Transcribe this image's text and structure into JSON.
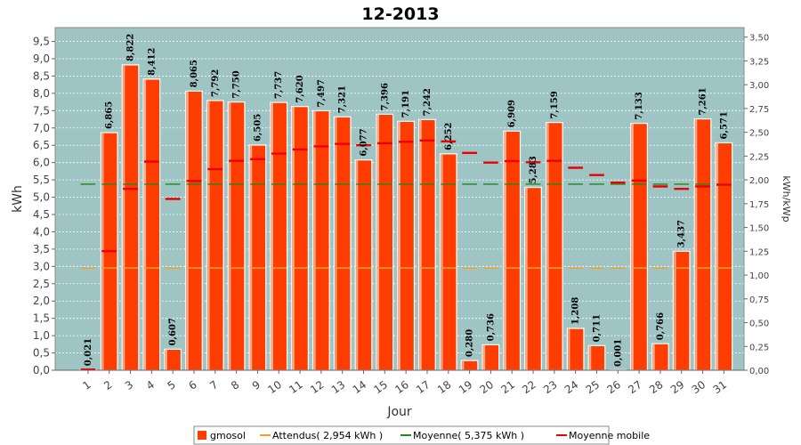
{
  "chart_data": {
    "type": "bar",
    "title": "12-2013",
    "xlabel": "Jour",
    "ylabel": "kWh",
    "y2label": "kWh/kWp",
    "ylim": [
      0,
      9.9
    ],
    "y2lim": [
      0,
      3.6
    ],
    "yticks": [
      "0,0",
      "0,5",
      "1,0",
      "1,5",
      "2,0",
      "2,5",
      "3,0",
      "3,5",
      "4,0",
      "4,5",
      "5,0",
      "5,5",
      "6,0",
      "6,5",
      "7,0",
      "7,5",
      "8,0",
      "8,5",
      "9,0",
      "9,5"
    ],
    "y2ticks": [
      "0,00",
      "0,25",
      "0,50",
      "0,75",
      "1,00",
      "1,25",
      "1,50",
      "1,75",
      "2,00",
      "2,25",
      "2,50",
      "2,75",
      "3,00",
      "3,25",
      "3,50"
    ],
    "categories": [
      "1",
      "2",
      "3",
      "4",
      "5",
      "6",
      "7",
      "8",
      "9",
      "10",
      "11",
      "12",
      "13",
      "14",
      "15",
      "16",
      "17",
      "18",
      "19",
      "20",
      "21",
      "22",
      "23",
      "24",
      "25",
      "26",
      "27",
      "28",
      "29",
      "30",
      "31"
    ],
    "series": [
      {
        "name": "gmosol",
        "kind": "bar",
        "color": "#ff3d00",
        "values": [
          0.021,
          6.865,
          8.822,
          8.412,
          0.607,
          8.065,
          7.792,
          7.75,
          6.505,
          7.737,
          7.62,
          7.497,
          7.321,
          6.077,
          7.396,
          7.191,
          7.242,
          6.252,
          0.28,
          0.736,
          6.909,
          5.283,
          7.159,
          1.208,
          0.711,
          0.001,
          7.133,
          0.766,
          3.437,
          7.261,
          6.571
        ],
        "labels": [
          "0,021",
          "6,865",
          "8,822",
          "8,412",
          "0,607",
          "8,065",
          "7,792",
          "7,750",
          "6,505",
          "7,737",
          "7,620",
          "7,497",
          "7,321",
          "6,077",
          "7,396",
          "7,191",
          "7,242",
          "6,252",
          "0,280",
          "0,736",
          "6,909",
          "5,283",
          "7,159",
          "1,208",
          "0,711",
          "0,001",
          "7,133",
          "0,766",
          "3,437",
          "7,261",
          "6,571"
        ]
      },
      {
        "name": "Attendus( 2,954 kWh )",
        "kind": "dash",
        "color": "#f0a030",
        "values": [
          2.954,
          2.954,
          2.954,
          2.954,
          2.954,
          2.954,
          2.954,
          2.954,
          2.954,
          2.954,
          2.954,
          2.954,
          2.954,
          2.954,
          2.954,
          2.954,
          2.954,
          2.954,
          2.954,
          2.954,
          2.954,
          2.954,
          2.954,
          2.954,
          2.954,
          2.954,
          2.954,
          2.954,
          2.954,
          2.954,
          2.954
        ]
      },
      {
        "name": "Moyenne( 5,375 kWh )",
        "kind": "dash",
        "color": "#1a8a1a",
        "values": [
          5.375,
          5.375,
          5.375,
          5.375,
          5.375,
          5.375,
          5.375,
          5.375,
          5.375,
          5.375,
          5.375,
          5.375,
          5.375,
          5.375,
          5.375,
          5.375,
          5.375,
          5.375,
          5.375,
          5.375,
          5.375,
          5.375,
          5.375,
          5.375,
          5.375,
          5.375,
          5.375,
          5.375,
          5.375,
          5.375,
          5.375
        ]
      },
      {
        "name": "Moyenne mobile",
        "kind": "dash",
        "color": "#ee0000",
        "values": [
          0.021,
          3.44,
          5.24,
          6.03,
          4.95,
          5.47,
          5.81,
          6.05,
          6.1,
          6.26,
          6.38,
          6.47,
          6.54,
          6.5,
          6.56,
          6.6,
          6.64,
          6.61,
          6.28,
          6.0,
          6.04,
          6.01,
          6.05,
          5.85,
          5.64,
          5.42,
          5.48,
          5.31,
          5.24,
          5.31,
          5.36
        ]
      }
    ],
    "legend_position": "bottom",
    "plot_background": "#9fc4c4",
    "grid": true
  }
}
